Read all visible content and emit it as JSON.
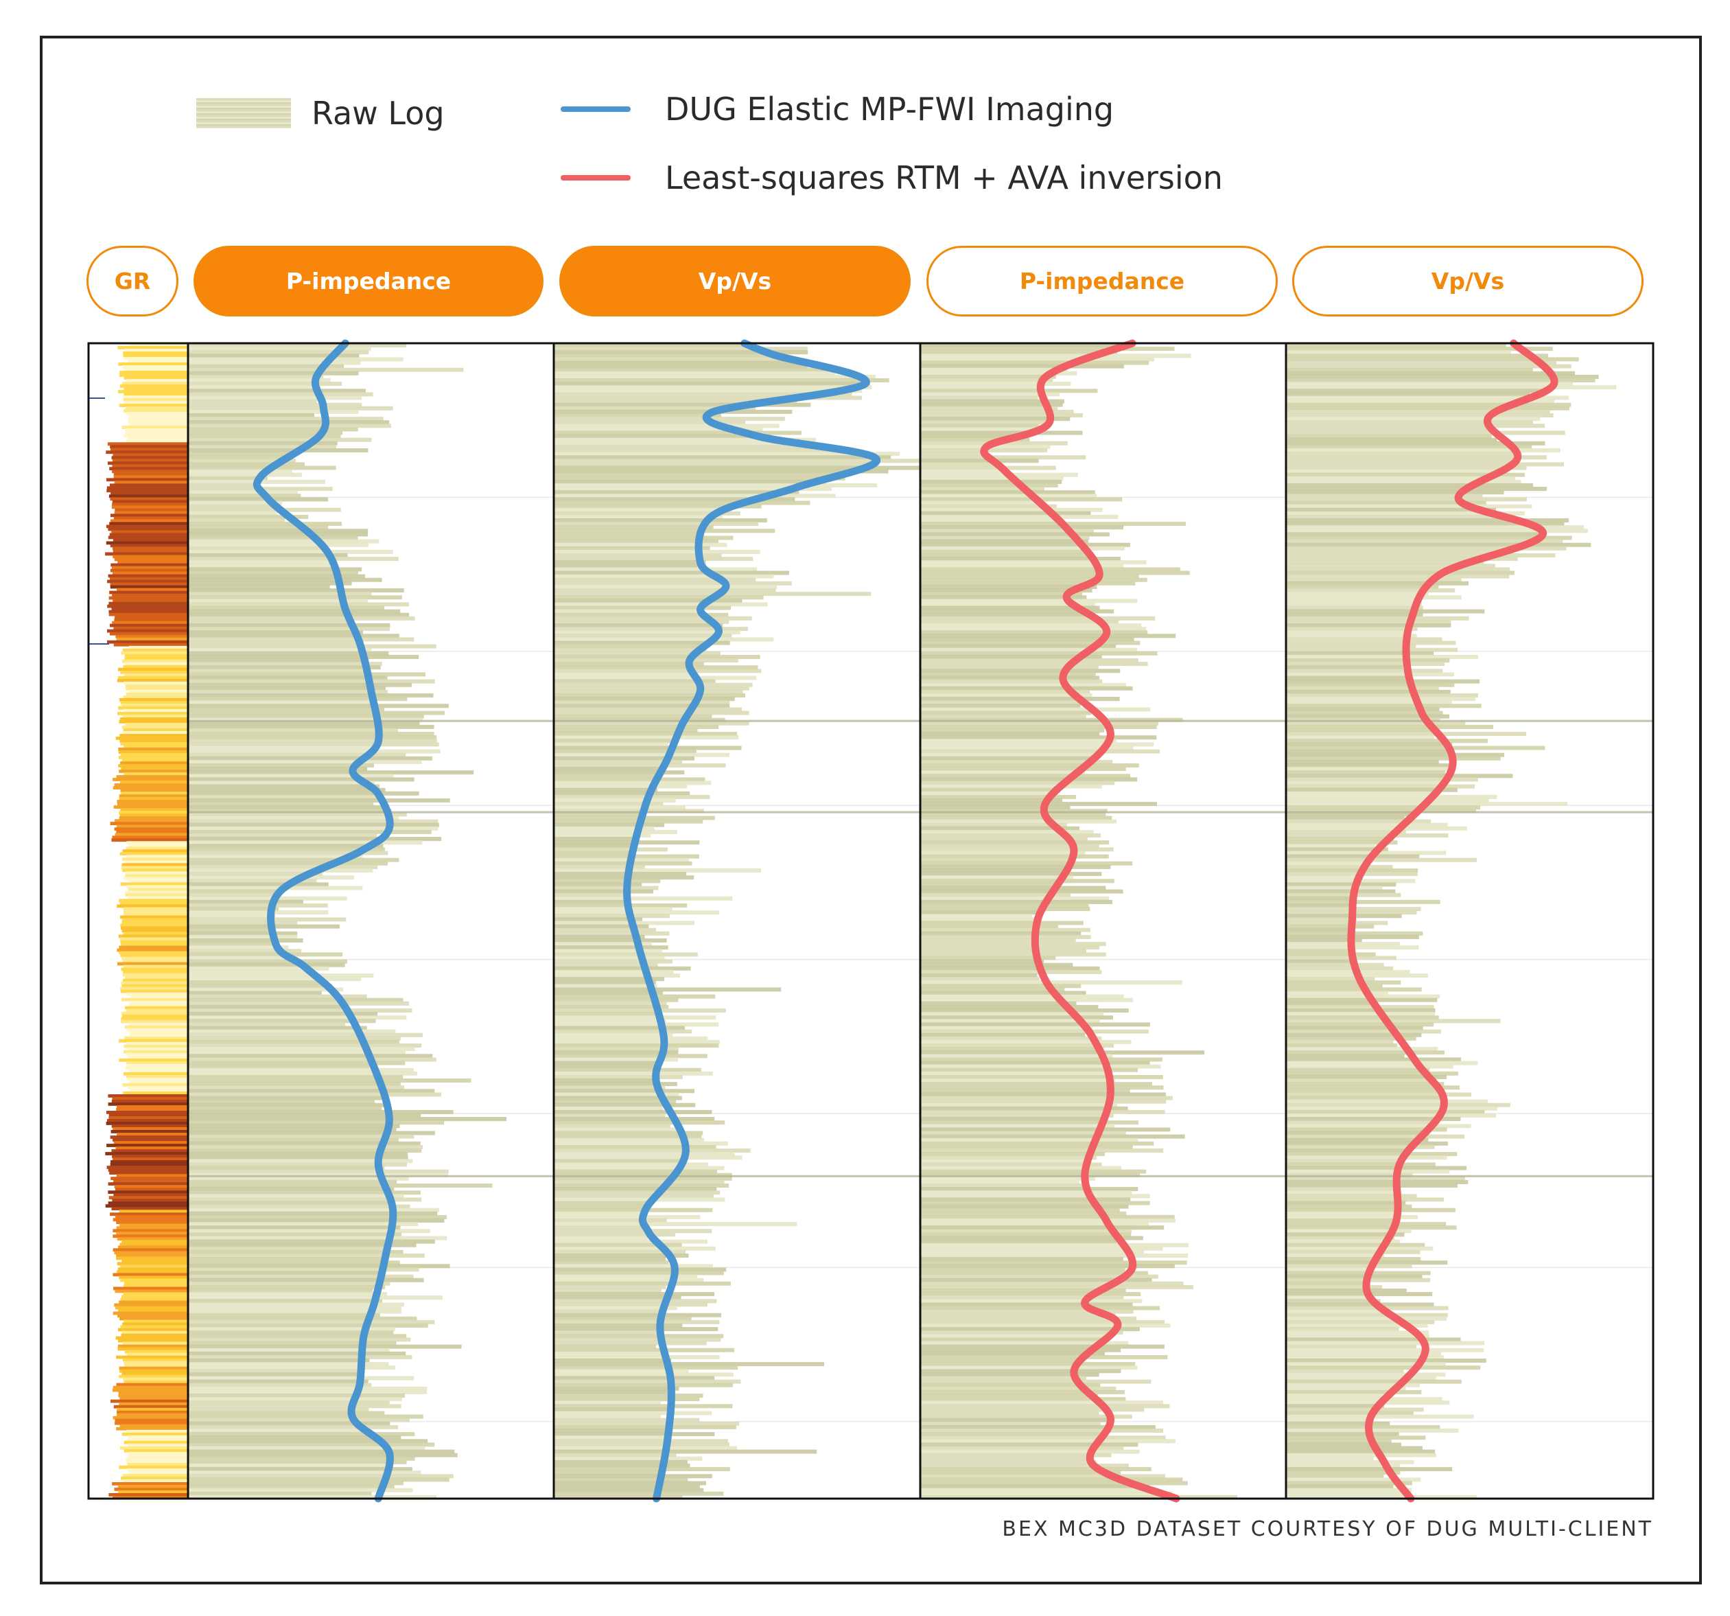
{
  "legend": {
    "raw_log": "Raw Log",
    "fwi": "DUG Elastic MP-FWI Imaging",
    "lsrtm": "Least-squares RTM + AVA inversion"
  },
  "tracks": {
    "gr": "GR",
    "fwi_pimp": "P-impedance",
    "fwi_vpvs": "Vp/Vs",
    "ls_pimp": "P-impedance",
    "ls_vpvs": "Vp/Vs"
  },
  "footer": "BEX MC3D DATASET COURTESY OF DUG MULTI-CLIENT",
  "colors": {
    "fwi": "#4a95cf",
    "lsrtm": "#ef5f64",
    "raw_log": "#dcdcb8",
    "accent": "#f8860b"
  },
  "chart_data": {
    "type": "line",
    "y_axis": "depth (relative, top = 0, bottom = 1)",
    "panels": [
      {
        "name": "P-impedance",
        "series": [
          {
            "name": "DUG Elastic MP-FWI Imaging",
            "y": [
              0,
              0.03,
              0.055,
              0.08,
              0.115,
              0.135,
              0.18,
              0.23,
              0.26,
              0.3,
              0.345,
              0.37,
              0.39,
              0.42,
              0.44,
              0.475,
              0.52,
              0.54,
              0.57,
              0.62,
              0.67,
              0.71,
              0.75,
              0.79,
              0.83,
              0.86,
              0.9,
              0.93,
              0.96,
              1.0
            ],
            "x": [
              0.43,
              0.35,
              0.37,
              0.36,
              0.2,
              0.22,
              0.38,
              0.43,
              0.47,
              0.5,
              0.52,
              0.45,
              0.52,
              0.55,
              0.47,
              0.25,
              0.24,
              0.32,
              0.42,
              0.5,
              0.55,
              0.52,
              0.56,
              0.54,
              0.51,
              0.48,
              0.47,
              0.45,
              0.55,
              0.52
            ]
          }
        ]
      },
      {
        "name": "Vp/Vs",
        "series": [
          {
            "name": "DUG Elastic MP-FWI Imaging",
            "y": [
              0,
              0.01,
              0.035,
              0.06,
              0.08,
              0.1,
              0.125,
              0.15,
              0.19,
              0.21,
              0.23,
              0.25,
              0.275,
              0.3,
              0.33,
              0.36,
              0.4,
              0.47,
              0.52,
              0.6,
              0.64,
              0.7,
              0.75,
              0.77,
              0.8,
              0.85,
              0.9,
              0.95,
              1.0
            ],
            "x": [
              0.52,
              0.6,
              0.85,
              0.43,
              0.55,
              0.88,
              0.66,
              0.43,
              0.4,
              0.47,
              0.4,
              0.45,
              0.37,
              0.4,
              0.35,
              0.31,
              0.25,
              0.2,
              0.23,
              0.3,
              0.28,
              0.36,
              0.25,
              0.26,
              0.33,
              0.29,
              0.32,
              0.31,
              0.28
            ]
          }
        ]
      },
      {
        "name": "P-impedance",
        "series": [
          {
            "name": "Least-squares RTM + AVA inversion",
            "y": [
              0,
              0.03,
              0.07,
              0.09,
              0.11,
              0.16,
              0.2,
              0.22,
              0.25,
              0.29,
              0.34,
              0.4,
              0.44,
              0.5,
              0.55,
              0.6,
              0.65,
              0.72,
              0.76,
              0.8,
              0.83,
              0.85,
              0.89,
              0.93,
              0.97,
              1.0
            ],
            "x": [
              0.58,
              0.34,
              0.35,
              0.18,
              0.23,
              0.4,
              0.49,
              0.4,
              0.51,
              0.39,
              0.52,
              0.34,
              0.42,
              0.32,
              0.34,
              0.47,
              0.52,
              0.45,
              0.51,
              0.58,
              0.45,
              0.54,
              0.42,
              0.52,
              0.47,
              0.7
            ]
          }
        ]
      },
      {
        "name": "Vp/Vs",
        "series": [
          {
            "name": "Least-squares RTM + AVA inversion",
            "y": [
              0,
              0.035,
              0.065,
              0.1,
              0.135,
              0.165,
              0.2,
              0.24,
              0.28,
              0.32,
              0.37,
              0.45,
              0.5,
              0.55,
              0.62,
              0.66,
              0.71,
              0.76,
              0.82,
              0.87,
              0.93,
              0.97,
              1.0
            ],
            "x": [
              0.62,
              0.73,
              0.55,
              0.63,
              0.47,
              0.7,
              0.42,
              0.34,
              0.33,
              0.37,
              0.45,
              0.22,
              0.18,
              0.2,
              0.35,
              0.43,
              0.31,
              0.3,
              0.22,
              0.38,
              0.23,
              0.27,
              0.34
            ]
          }
        ]
      }
    ]
  }
}
